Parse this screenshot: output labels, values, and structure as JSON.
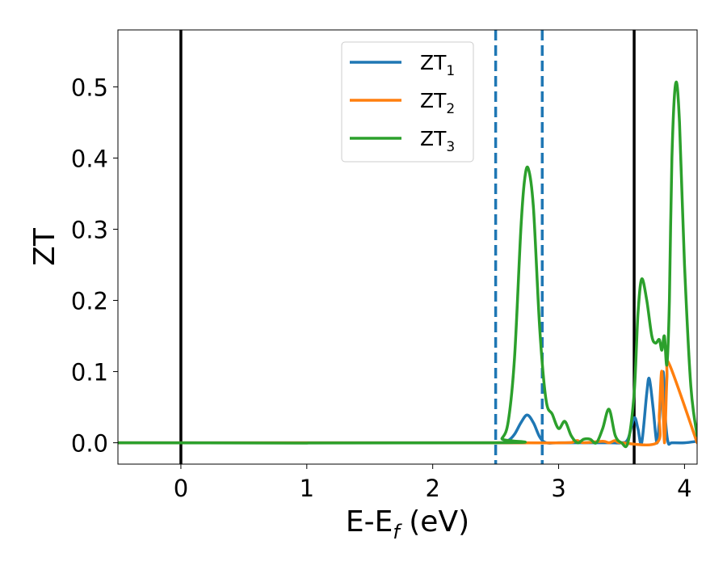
{
  "chart_data": {
    "type": "line",
    "xlabel": {
      "main": "E-E",
      "sub": "f",
      "unit": " (eV)"
    },
    "ylabel": "ZT",
    "xlim": [
      -0.5,
      4.1
    ],
    "ylim": [
      -0.03,
      0.58
    ],
    "xticks": [
      {
        "value": 0,
        "label": "0"
      },
      {
        "value": 1,
        "label": "1"
      },
      {
        "value": 2,
        "label": "2"
      },
      {
        "value": 3,
        "label": "3"
      },
      {
        "value": 4,
        "label": "4"
      }
    ],
    "yticks": [
      {
        "value": 0.0,
        "label": "0.0"
      },
      {
        "value": 0.1,
        "label": "0.1"
      },
      {
        "value": 0.2,
        "label": "0.2"
      },
      {
        "value": 0.3,
        "label": "0.3"
      },
      {
        "value": 0.4,
        "label": "0.4"
      },
      {
        "value": 0.5,
        "label": "0.5"
      }
    ],
    "grid": false,
    "legend": {
      "position": "top-center"
    },
    "series": [
      {
        "name": "ZT",
        "sub": "1",
        "color": "#1f77b4",
        "x": [
          -0.5,
          2.5,
          2.55,
          2.6,
          2.65,
          2.7,
          2.75,
          2.8,
          2.85,
          2.9,
          3.0,
          3.2,
          3.4,
          3.5,
          3.55,
          3.6,
          3.63,
          3.66,
          3.7,
          3.72,
          3.75,
          3.78,
          3.8,
          3.83,
          3.85,
          3.87,
          3.9,
          4.0,
          4.1
        ],
        "y": [
          0,
          0,
          0,
          0.003,
          0.012,
          0.028,
          0.039,
          0.028,
          0.008,
          0.0,
          0,
          0,
          0,
          0,
          0.005,
          0.035,
          0.02,
          0.0,
          0.07,
          0.09,
          0.05,
          0.0,
          0.03,
          0.1,
          0.03,
          0.0,
          0.0,
          0,
          0.002
        ]
      },
      {
        "name": "ZT",
        "sub": "2",
        "color": "#ff7f0e",
        "x": [
          -0.5,
          2.5,
          3.05,
          3.12,
          3.15,
          3.2,
          3.35,
          3.4,
          3.45,
          3.5,
          3.78,
          3.8,
          3.82,
          3.84,
          3.86,
          3.88,
          4.1
        ],
        "y": [
          0,
          0,
          0,
          0.002,
          0.003,
          0.0,
          0.002,
          0.0,
          0.003,
          0.0,
          0.0,
          0.04,
          0.1,
          0.0,
          0.09,
          0.11,
          0.0
        ]
      },
      {
        "name": "ZT",
        "sub": "3",
        "color": "#2ca02c",
        "x": [
          -0.5,
          2.5,
          2.55,
          2.6,
          2.65,
          2.7,
          2.73,
          2.76,
          2.8,
          2.85,
          2.9,
          2.95,
          3.0,
          3.05,
          3.1,
          3.15,
          3.2,
          3.25,
          3.3,
          3.35,
          3.4,
          3.45,
          3.5,
          3.55,
          3.6,
          3.63,
          3.66,
          3.7,
          3.74,
          3.77,
          3.8,
          3.82,
          3.84,
          3.86,
          3.88,
          3.9,
          3.93,
          3.96,
          4.0,
          4.05,
          4.1
        ],
        "y": [
          0,
          0,
          0.006,
          0.03,
          0.12,
          0.3,
          0.37,
          0.385,
          0.33,
          0.16,
          0.06,
          0.04,
          0.02,
          0.03,
          0.01,
          0.0,
          0.005,
          0.005,
          0.0,
          0.02,
          0.047,
          0.01,
          0.0,
          0.0,
          0.07,
          0.18,
          0.23,
          0.2,
          0.15,
          0.14,
          0.145,
          0.13,
          0.15,
          0.11,
          0.2,
          0.4,
          0.505,
          0.45,
          0.25,
          0.08,
          0.01
        ]
      }
    ],
    "vlines": [
      {
        "x": 0.0,
        "style": "solid",
        "color": "#000000"
      },
      {
        "x": 3.6,
        "style": "solid",
        "color": "#000000"
      },
      {
        "x": 2.5,
        "style": "dashed",
        "color": "#1f77b4"
      },
      {
        "x": 2.87,
        "style": "dashed",
        "color": "#1f77b4"
      }
    ]
  }
}
